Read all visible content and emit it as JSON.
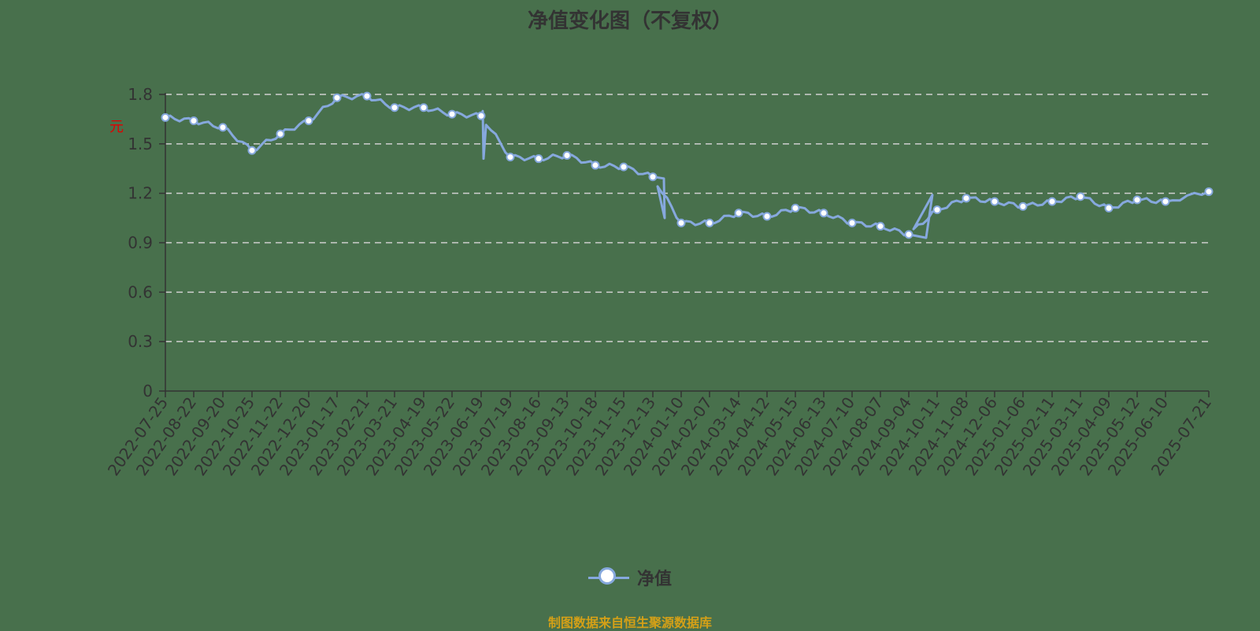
{
  "chart_data": {
    "type": "line",
    "title": "净值变化图（不复权）",
    "xlabel": "",
    "ylabel": "元",
    "ylim": [
      0,
      1.8
    ],
    "yticks": [
      0,
      0.3,
      0.6,
      0.9,
      1.2,
      1.5,
      1.8
    ],
    "ytick_labels": [
      "0",
      "0.3",
      "0.6",
      "0.9",
      "1.2",
      "1.5",
      "1.8"
    ],
    "grid": "horizontal dashed",
    "legend_position": "bottom-center",
    "categories": [
      "2022-07-25",
      "2022-08-22",
      "2022-09-20",
      "2022-10-25",
      "2022-11-22",
      "2022-12-20",
      "2023-01-17",
      "2023-02-21",
      "2023-03-21",
      "2023-04-19",
      "2023-05-22",
      "2023-06-19",
      "2023-07-19",
      "2023-08-16",
      "2023-09-13",
      "2023-10-18",
      "2023-11-15",
      "2023-12-13",
      "2024-01-10",
      "2024-02-07",
      "2024-03-14",
      "2024-04-12",
      "2024-05-15",
      "2024-06-13",
      "2024-07-10",
      "2024-08-07",
      "2024-09-04",
      "2024-10-11",
      "2024-11-08",
      "2024-12-06",
      "2025-01-06",
      "2025-02-11",
      "2025-03-11",
      "2025-04-09",
      "2025-05-12",
      "2025-06-10",
      "2025-07-21"
    ],
    "series": [
      {
        "name": "净值",
        "color": "#86a8dd",
        "values": [
          1.66,
          1.64,
          1.6,
          1.46,
          1.56,
          1.64,
          1.78,
          1.79,
          1.72,
          1.72,
          1.68,
          1.67,
          1.42,
          1.41,
          1.43,
          1.37,
          1.36,
          1.3,
          1.02,
          1.02,
          1.08,
          1.06,
          1.11,
          1.08,
          1.02,
          1.0,
          0.95,
          1.1,
          1.17,
          1.15,
          1.12,
          1.15,
          1.18,
          1.11,
          1.16,
          1.15,
          1.21
        ]
      }
    ]
  },
  "chart": {
    "title": "净值变化图（不复权）",
    "unit": "元"
  },
  "legend": {
    "label": "净值",
    "color": "#86a8dd"
  },
  "footer": {
    "source": "制图数据来自恒生聚源数据库",
    "color": "#d4a017"
  }
}
